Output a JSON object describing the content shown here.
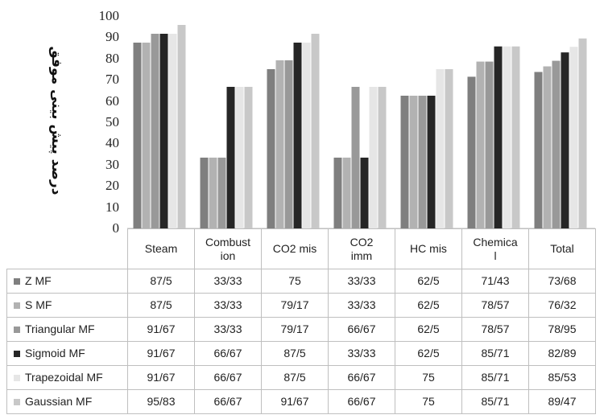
{
  "chart_data": {
    "type": "bar",
    "ylabel": "درصد پیش بینی موفق",
    "ylim": [
      0,
      100
    ],
    "yticks": [
      "0",
      "10",
      "20",
      "30",
      "40",
      "50",
      "60",
      "70",
      "80",
      "90",
      "100"
    ],
    "categories": [
      "Steam",
      "Combustion",
      "CO2 mis",
      "CO2 imm",
      "HC mis",
      "Chemical",
      "Total"
    ],
    "category_labels": [
      "Steam",
      "Combust\nion",
      "CO2 mis",
      "CO2\nimm",
      "HC mis",
      "Chemica\nl",
      "Total"
    ],
    "series": [
      {
        "name": "Z MF",
        "color": "#7f7f7f",
        "values": [
          87.5,
          33.33,
          75,
          33.33,
          62.5,
          71.43,
          73.68
        ],
        "labels": [
          "87/5",
          "33/33",
          "75",
          "33/33",
          "62/5",
          "71/43",
          "73/68"
        ]
      },
      {
        "name": "S MF",
        "color": "#b2b2b2",
        "values": [
          87.5,
          33.33,
          79.17,
          33.33,
          62.5,
          78.57,
          76.32
        ],
        "labels": [
          "87/5",
          "33/33",
          "79/17",
          "33/33",
          "62/5",
          "78/57",
          "76/32"
        ]
      },
      {
        "name": "Triangular MF",
        "color": "#999999",
        "values": [
          91.67,
          33.33,
          79.17,
          66.67,
          62.5,
          78.57,
          78.95
        ],
        "labels": [
          "91/67",
          "33/33",
          "79/17",
          "66/67",
          "62/5",
          "78/57",
          "78/95"
        ]
      },
      {
        "name": "Sigmoid MF",
        "color": "#262626",
        "values": [
          91.67,
          66.67,
          87.5,
          33.33,
          62.5,
          85.71,
          82.89
        ],
        "labels": [
          "91/67",
          "66/67",
          "87/5",
          "33/33",
          "62/5",
          "85/71",
          "82/89"
        ]
      },
      {
        "name": "Trapezoidal MF",
        "color": "#e6e6e6",
        "values": [
          91.67,
          66.67,
          87.5,
          66.67,
          75,
          85.71,
          85.53
        ],
        "labels": [
          "91/67",
          "66/67",
          "87/5",
          "66/67",
          "75",
          "85/71",
          "85/53"
        ]
      },
      {
        "name": "Gaussian MF",
        "color": "#c8c8c8",
        "values": [
          95.83,
          66.67,
          91.67,
          66.67,
          75,
          85.71,
          89.47
        ],
        "labels": [
          "95/83",
          "66/67",
          "91/67",
          "66/67",
          "75",
          "85/71",
          "89/47"
        ]
      }
    ]
  }
}
